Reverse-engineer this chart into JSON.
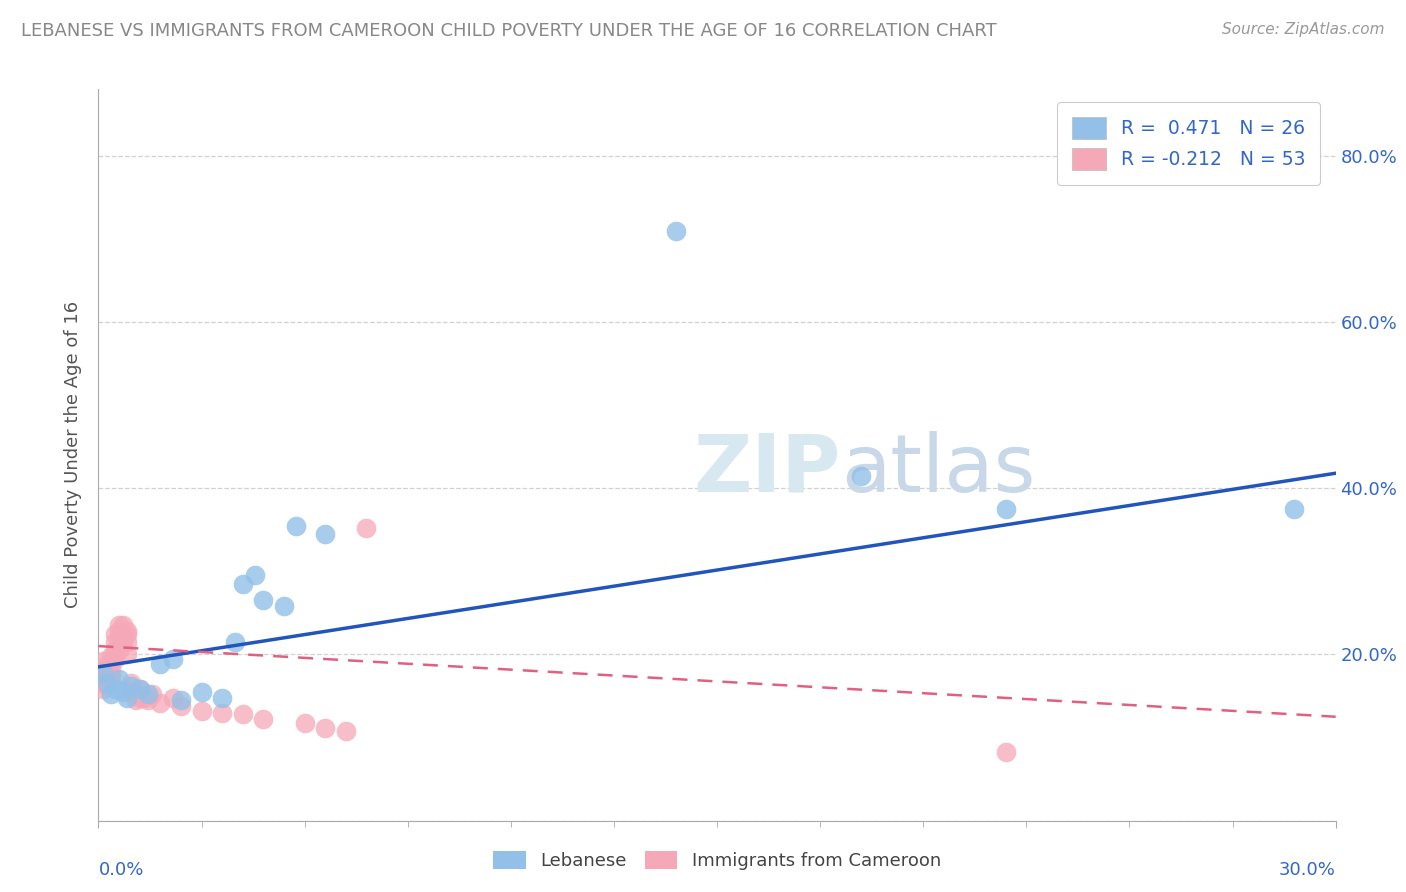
{
  "title": "LEBANESE VS IMMIGRANTS FROM CAMEROON CHILD POVERTY UNDER THE AGE OF 16 CORRELATION CHART",
  "source": "Source: ZipAtlas.com",
  "ylabel": "Child Poverty Under the Age of 16",
  "xlim": [
    0.0,
    0.3
  ],
  "ylim": [
    0.0,
    0.88
  ],
  "yticks": [
    0.0,
    0.2,
    0.4,
    0.6,
    0.8
  ],
  "ytick_labels": [
    "",
    "20.0%",
    "40.0%",
    "60.0%",
    "80.0%"
  ],
  "xtick_left": "0.0%",
  "xtick_right": "30.0%",
  "legend_blue_label": "R =  0.471   N = 26",
  "legend_pink_label": "R = -0.212   N = 53",
  "label_blue": "Lebanese",
  "label_pink": "Immigrants from Cameroon",
  "blue_color": "#92c0e8",
  "pink_color": "#f5a8b8",
  "trend_blue_color": "#2255bb",
  "trend_pink_color": "#e06080",
  "legend_text_color": "#3366cc",
  "watermark_color": "#d8e8f0",
  "blue_points": [
    [
      0.001,
      0.178
    ],
    [
      0.002,
      0.165
    ],
    [
      0.003,
      0.152
    ],
    [
      0.004,
      0.158
    ],
    [
      0.005,
      0.17
    ],
    [
      0.006,
      0.155
    ],
    [
      0.007,
      0.148
    ],
    [
      0.008,
      0.162
    ],
    [
      0.01,
      0.158
    ],
    [
      0.012,
      0.152
    ],
    [
      0.015,
      0.188
    ],
    [
      0.018,
      0.195
    ],
    [
      0.02,
      0.145
    ],
    [
      0.025,
      0.155
    ],
    [
      0.03,
      0.148
    ],
    [
      0.033,
      0.215
    ],
    [
      0.035,
      0.285
    ],
    [
      0.038,
      0.295
    ],
    [
      0.04,
      0.265
    ],
    [
      0.045,
      0.258
    ],
    [
      0.048,
      0.355
    ],
    [
      0.055,
      0.345
    ],
    [
      0.14,
      0.71
    ],
    [
      0.185,
      0.415
    ],
    [
      0.22,
      0.375
    ],
    [
      0.29,
      0.375
    ]
  ],
  "pink_points": [
    [
      0.0,
      0.178
    ],
    [
      0.001,
      0.182
    ],
    [
      0.001,
      0.168
    ],
    [
      0.001,
      0.172
    ],
    [
      0.001,
      0.192
    ],
    [
      0.001,
      0.158
    ],
    [
      0.001,
      0.165
    ],
    [
      0.002,
      0.178
    ],
    [
      0.002,
      0.162
    ],
    [
      0.002,
      0.188
    ],
    [
      0.002,
      0.175
    ],
    [
      0.002,
      0.168
    ],
    [
      0.003,
      0.182
    ],
    [
      0.003,
      0.198
    ],
    [
      0.003,
      0.168
    ],
    [
      0.003,
      0.175
    ],
    [
      0.004,
      0.215
    ],
    [
      0.004,
      0.225
    ],
    [
      0.004,
      0.195
    ],
    [
      0.004,
      0.205
    ],
    [
      0.005,
      0.235
    ],
    [
      0.005,
      0.22
    ],
    [
      0.005,
      0.228
    ],
    [
      0.005,
      0.205
    ],
    [
      0.006,
      0.22
    ],
    [
      0.006,
      0.235
    ],
    [
      0.006,
      0.215
    ],
    [
      0.006,
      0.225
    ],
    [
      0.007,
      0.228
    ],
    [
      0.007,
      0.225
    ],
    [
      0.007,
      0.2
    ],
    [
      0.007,
      0.215
    ],
    [
      0.008,
      0.155
    ],
    [
      0.008,
      0.165
    ],
    [
      0.009,
      0.152
    ],
    [
      0.009,
      0.145
    ],
    [
      0.01,
      0.148
    ],
    [
      0.01,
      0.158
    ],
    [
      0.011,
      0.148
    ],
    [
      0.012,
      0.145
    ],
    [
      0.013,
      0.152
    ],
    [
      0.015,
      0.142
    ],
    [
      0.018,
      0.148
    ],
    [
      0.02,
      0.138
    ],
    [
      0.025,
      0.132
    ],
    [
      0.03,
      0.13
    ],
    [
      0.035,
      0.128
    ],
    [
      0.04,
      0.122
    ],
    [
      0.05,
      0.118
    ],
    [
      0.055,
      0.112
    ],
    [
      0.06,
      0.108
    ],
    [
      0.065,
      0.352
    ],
    [
      0.22,
      0.082
    ]
  ],
  "blue_trendline": [
    0.0,
    0.185,
    0.3,
    0.418
  ],
  "pink_trendline": [
    0.0,
    0.21,
    0.3,
    0.125
  ]
}
